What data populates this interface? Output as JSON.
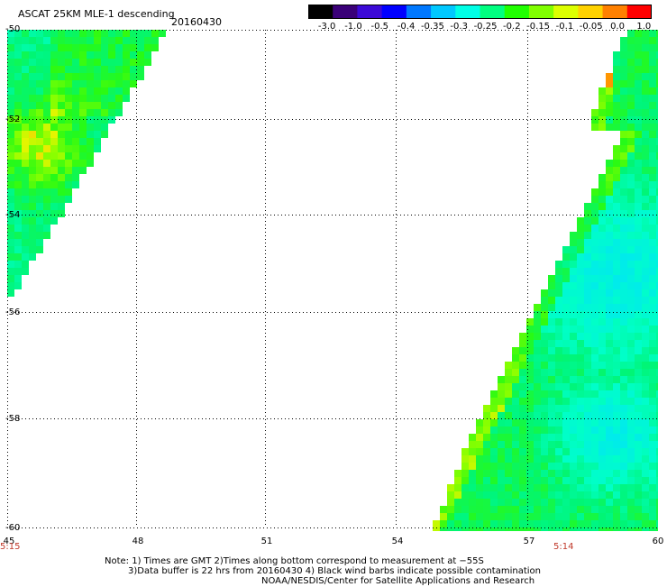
{
  "title": "ASCAT 25KM MLE-1 descending",
  "date": "20160430",
  "colorbar": {
    "labels": [
      "-3.0",
      "-1.0",
      "-0.5",
      "-0.4",
      "-0.35",
      "-0.3",
      "-0.25",
      "-0.2",
      "-0.15",
      "-0.1",
      "-0.05",
      "0.0",
      "1.0"
    ],
    "colors": [
      "#000000",
      "#3a0078",
      "#3c0ad7",
      "#0000ff",
      "#0078ff",
      "#00c8ff",
      "#00ffe6",
      "#00ff80",
      "#20ff00",
      "#80ff00",
      "#dcff00",
      "#ffd200",
      "#ff8000",
      "#ff0000"
    ]
  },
  "axes": {
    "x_labels": [
      "45",
      "48",
      "51",
      "54",
      "57",
      "60"
    ],
    "y_labels": [
      "-50",
      "-52",
      "-54",
      "-56",
      "-58",
      "-60"
    ],
    "x_range": [
      45,
      60
    ],
    "y_range": [
      -50,
      -60
    ]
  },
  "times": {
    "left": "5:15",
    "right": "5:14"
  },
  "notes": [
    "Note: 1) Times are GMT 2)Times along bottom correspond to measurement at −55S",
    "3)Data buffer is 22 hrs from 20160430 4) Black wind barbs indicate possible contamination",
    "NOAA/NESDIS/Center for Satellite Applications and Research"
  ]
}
